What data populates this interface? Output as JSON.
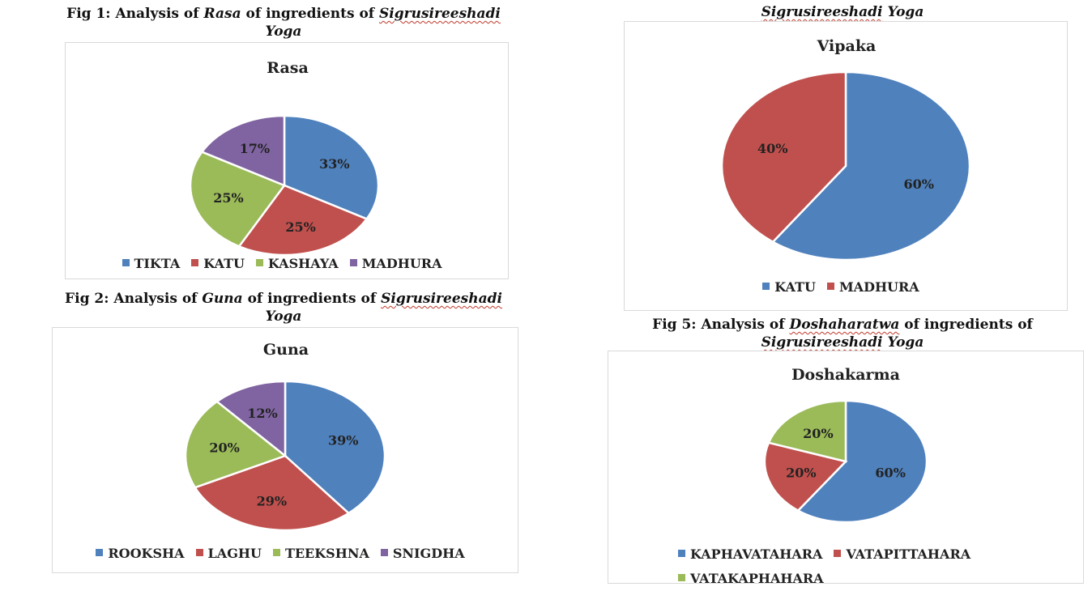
{
  "captions": {
    "fig1": {
      "prefix": "Fig 1: Analysis of ",
      "em": "Rasa",
      "mid": " of ingredients of ",
      "name": "Sigrusireeshadi",
      "suffix": "Yoga"
    },
    "fig2": {
      "prefix": "Fig 2: Analysis of ",
      "em": "Guna",
      "mid": " of ingredients of ",
      "name": "Sigrusireeshadi",
      "suffix": "Yoga"
    },
    "fig4_tail": {
      "name": "Sigrusireeshadi",
      "suffix": "Yoga"
    },
    "fig5": {
      "prefix": "Fig 5: Analysis of ",
      "em": "Doshaharatwa",
      "mid": " of ingredients of",
      "name": "Sigrusireeshadi",
      "suffix": "Yoga"
    }
  },
  "colors": {
    "blue": "#4f81bd",
    "red": "#c0504d",
    "green": "#9bbb59",
    "purple": "#8064a2"
  },
  "chart_data": [
    {
      "id": "rasa",
      "type": "pie",
      "title": "Rasa",
      "slices": [
        {
          "name": "TIKTA",
          "value": 33,
          "label": "33%",
          "color": "#4f81bd"
        },
        {
          "name": "KATU",
          "value": 25,
          "label": "25%",
          "color": "#c0504d"
        },
        {
          "name": "KASHAYA",
          "value": 25,
          "label": "25%",
          "color": "#9bbb59"
        },
        {
          "name": "MADHURA",
          "value": 17,
          "label": "17%",
          "color": "#8064a2"
        }
      ],
      "legend_position": "bottom"
    },
    {
      "id": "guna",
      "type": "pie",
      "title": "Guna",
      "slices": [
        {
          "name": "ROOKSHA",
          "value": 39,
          "label": "39%",
          "color": "#4f81bd"
        },
        {
          "name": "LAGHU",
          "value": 29,
          "label": "29%",
          "color": "#c0504d"
        },
        {
          "name": "TEEKSHNA",
          "value": 20,
          "label": "20%",
          "color": "#9bbb59"
        },
        {
          "name": "SNIGDHA",
          "value": 12,
          "label": "12%",
          "color": "#8064a2"
        }
      ],
      "legend_position": "bottom"
    },
    {
      "id": "vipaka",
      "type": "pie",
      "title": "Vipaka",
      "slices": [
        {
          "name": "KATU",
          "value": 60,
          "label": "60%",
          "color": "#4f81bd"
        },
        {
          "name": "MADHURA",
          "value": 40,
          "label": "40%",
          "color": "#c0504d"
        }
      ],
      "legend_position": "bottom"
    },
    {
      "id": "doshakarma",
      "type": "pie",
      "title": "Doshakarma",
      "slices": [
        {
          "name": "KAPHAVATAHARA",
          "value": 60,
          "label": "60%",
          "color": "#4f81bd"
        },
        {
          "name": "VATAPITTAHARA",
          "value": 20,
          "label": "20%",
          "color": "#c0504d"
        },
        {
          "name": "VATAKAPHAHARA",
          "value": 20,
          "label": "20%",
          "color": "#9bbb59"
        }
      ],
      "legend_position": "bottom"
    }
  ]
}
